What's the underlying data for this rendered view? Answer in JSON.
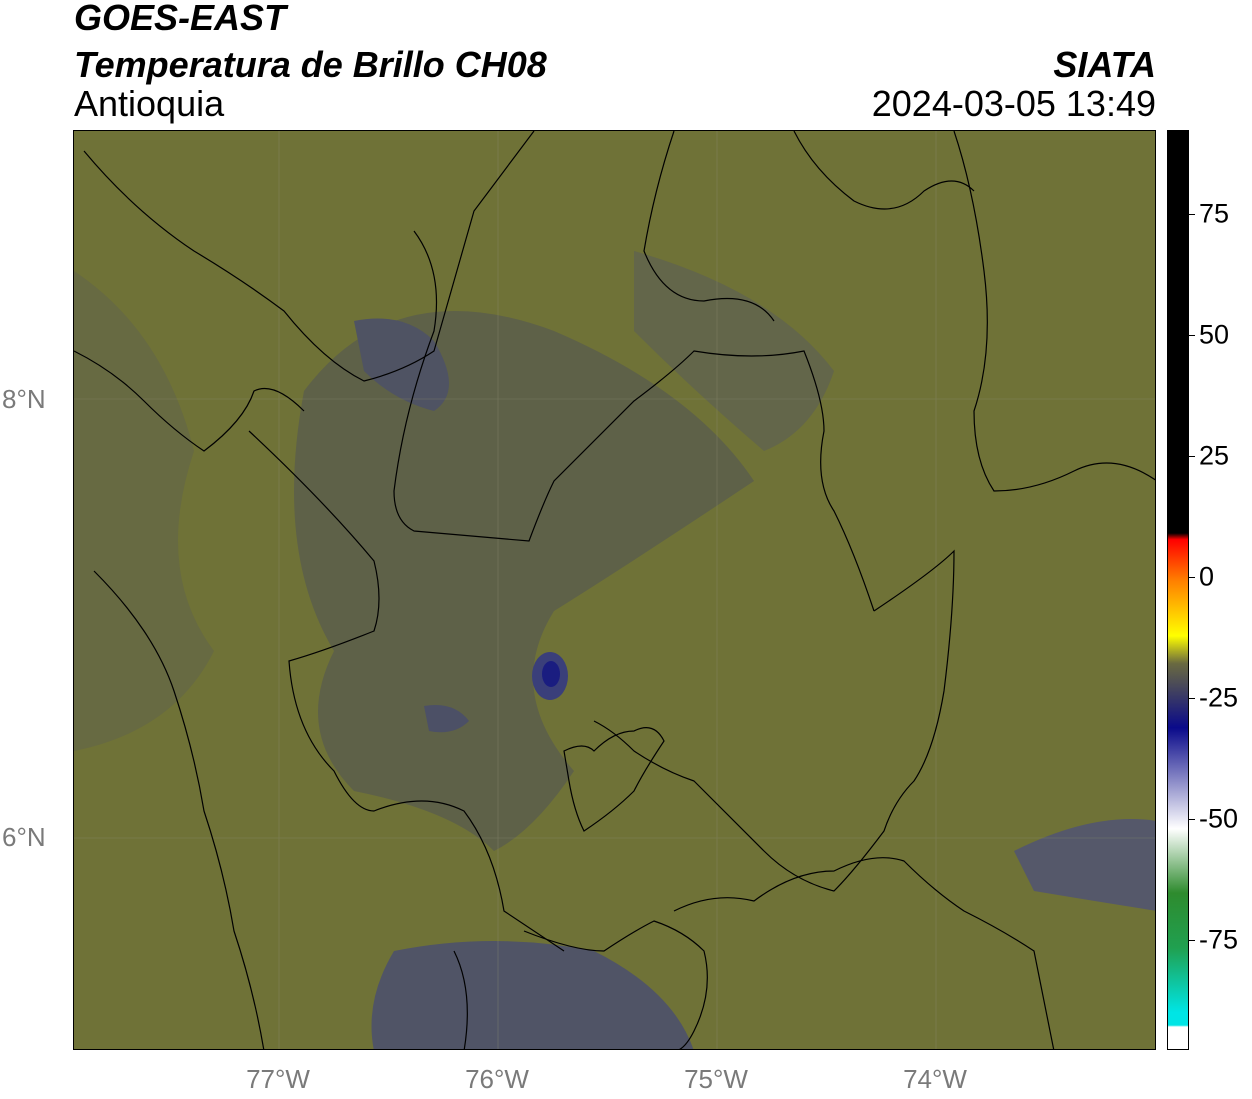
{
  "header": {
    "satellite": "GOES-EAST",
    "product": "Temperatura de Brillo CH08",
    "organization": "SIATA",
    "region": "Antioquia",
    "timestamp": "2024-03-05 13:49"
  },
  "map": {
    "lat_labels": [
      "8°N",
      "6°N"
    ],
    "lon_labels": [
      "77°W",
      "76°W",
      "75°W",
      "74°W"
    ],
    "base_color": "#6f7237",
    "cool_color": "#5c5f4c",
    "cold_color": "#4b4f63",
    "coldest_color": "#1a1d80"
  },
  "colorbar": {
    "tick_labels": [
      "75",
      "50",
      "25",
      "0",
      "-25",
      "-50",
      "-75"
    ],
    "colors": [
      "#ffffff",
      "#00e5e5",
      "#20a050",
      "#2e8b2e",
      "#ffffff",
      "#0a0a8a",
      "#6a6a40",
      "#ffff00",
      "#ff8000",
      "#ff0000",
      "#000000"
    ]
  }
}
